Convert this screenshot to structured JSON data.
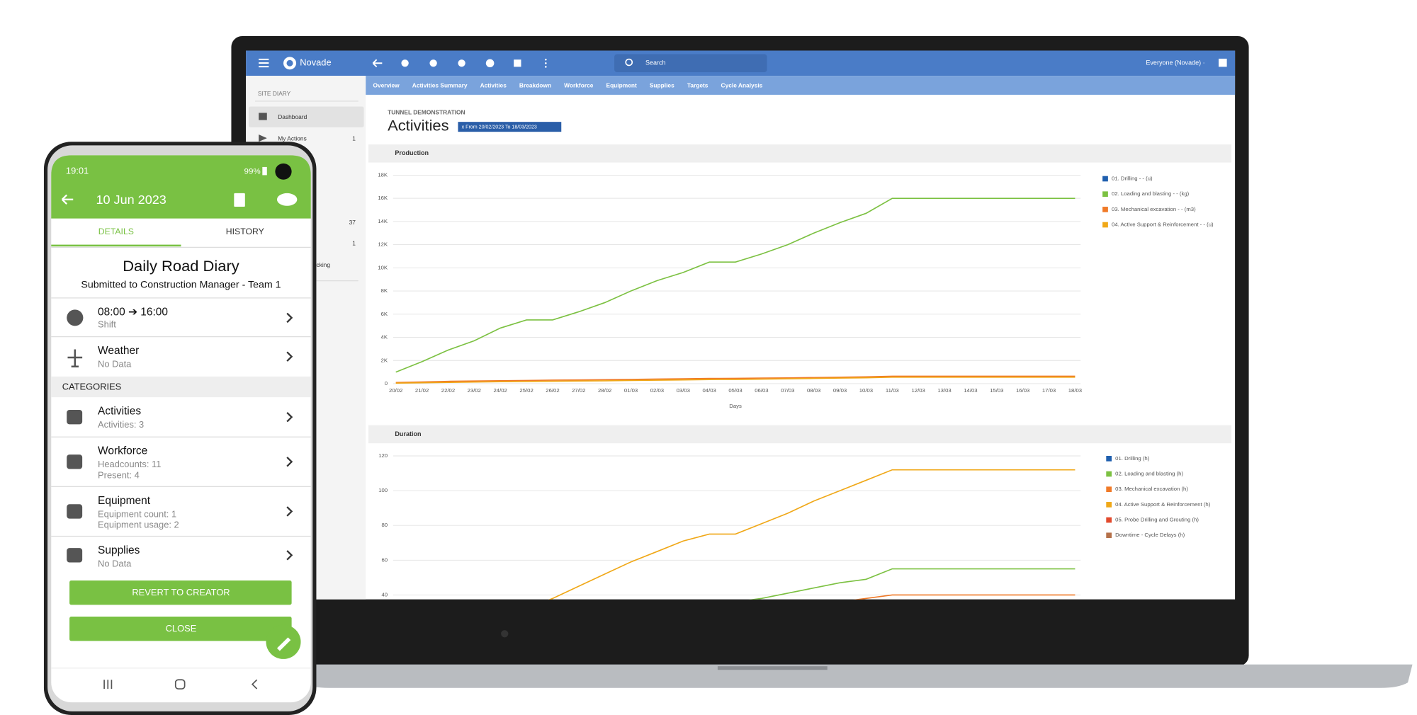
{
  "laptop": {
    "brand": "Novade",
    "search": "Search",
    "user": "Everyone (Novade) ·",
    "tabs": [
      "Overview",
      "Activities Summary",
      "Activities",
      "Breakdown",
      "Workforce",
      "Equipment",
      "Supplies",
      "Targets",
      "Cycle Analysis"
    ],
    "sidebar": {
      "section": "SITE DIARY",
      "items": [
        {
          "label": "Dashboard"
        },
        {
          "label": "My Actions",
          "count": "1"
        }
      ],
      "partial": [
        "37",
        "1",
        "cking"
      ]
    },
    "breadcrumb": "TUNNEL DEMONSTRATION",
    "title": "Activities",
    "filter": "x  From 20/02/2023 To 18/03/2023"
  },
  "chart_data": [
    {
      "type": "line",
      "title": "Production",
      "xlabel": "Days",
      "categories": [
        "20/02",
        "21/02",
        "22/02",
        "23/02",
        "24/02",
        "25/02",
        "26/02",
        "27/02",
        "28/02",
        "01/03",
        "02/03",
        "03/03",
        "04/03",
        "05/03",
        "06/03",
        "07/03",
        "08/03",
        "09/03",
        "10/03",
        "11/03",
        "12/03",
        "13/03",
        "14/03",
        "15/03",
        "16/03",
        "17/03",
        "18/03"
      ],
      "ylim": [
        0,
        18000
      ],
      "yticks": [
        0,
        {
          "value": 2000,
          "label": "2K"
        },
        {
          "value": 4000,
          "label": "4K"
        },
        {
          "value": 6000,
          "label": "6K"
        },
        {
          "value": 8000,
          "label": "8K"
        },
        {
          "value": 10000,
          "label": "10K"
        },
        {
          "value": 12000,
          "label": "12K"
        },
        {
          "value": 14000,
          "label": "14K"
        },
        {
          "value": 16000,
          "label": "16K"
        },
        {
          "value": 18000,
          "label": "18K"
        }
      ],
      "grid": true,
      "series": [
        {
          "name": "01. Drilling - - (u)",
          "color": "#1f5fae"
        },
        {
          "name": "02. Loading and blasting - - (kg)",
          "color": "#7cc142",
          "values": [
            1000,
            1900,
            2900,
            3700,
            4800,
            5500,
            5500,
            6200,
            7000,
            8000,
            8900,
            9600,
            10500,
            10500,
            11200,
            12000,
            13000,
            13900,
            14700,
            16000,
            16000,
            16000,
            16000,
            16000,
            16000,
            16000,
            16000
          ]
        },
        {
          "name": "03. Mechanical excavation - - (m3)",
          "color": "#f07a28",
          "values": [
            100,
            150,
            200,
            230,
            260,
            280,
            300,
            320,
            340,
            370,
            400,
            420,
            450,
            460,
            480,
            500,
            530,
            560,
            590,
            650,
            650,
            650,
            650,
            650,
            650,
            650,
            650
          ]
        },
        {
          "name": "04. Active Support & Reinforcement - - (u)",
          "color": "#f0a818",
          "values": [
            50,
            80,
            110,
            140,
            170,
            190,
            210,
            230,
            250,
            280,
            300,
            330,
            360,
            370,
            390,
            420,
            450,
            480,
            510,
            560,
            560,
            560,
            560,
            560,
            560,
            560,
            560
          ]
        }
      ]
    },
    {
      "type": "line",
      "title": "Duration",
      "categories": [
        "20/02",
        "21/02",
        "22/02",
        "23/02",
        "24/02",
        "25/02",
        "26/02",
        "27/02",
        "28/02",
        "01/03",
        "02/03",
        "03/03",
        "04/03",
        "05/03",
        "06/03",
        "07/03",
        "08/03",
        "09/03",
        "10/03",
        "11/03",
        "12/03",
        "13/03",
        "14/03",
        "15/03",
        "16/03",
        "17/03",
        "18/03"
      ],
      "ylim": [
        0,
        120
      ],
      "yticks": [
        40,
        60,
        80,
        100,
        120
      ],
      "grid": true,
      "series": [
        {
          "name": "01. Drilling (h)",
          "color": "#1f5fae"
        },
        {
          "name": "02. Loading and blasting (h)",
          "color": "#7cc142",
          "values": [
            8,
            10,
            12,
            14,
            16,
            18,
            20,
            22,
            24,
            26,
            28,
            30,
            33,
            36,
            38,
            41,
            44,
            47,
            49,
            55,
            55,
            55,
            55,
            55,
            55,
            55,
            55
          ]
        },
        {
          "name": "03. Mechanical excavation (h)",
          "color": "#f07a28",
          "values": [
            5,
            7,
            9,
            11,
            13,
            15,
            17,
            19,
            21,
            23,
            25,
            27,
            29,
            31,
            33,
            34,
            35,
            36,
            38,
            40,
            40,
            40,
            40,
            40,
            40,
            40,
            40
          ]
        },
        {
          "name": "04. Active Support & Reinforcement (h)",
          "color": "#f0a818",
          "values": [
            2,
            8,
            14,
            20,
            26,
            32,
            38,
            45,
            52,
            59,
            65,
            71,
            75,
            75,
            81,
            87,
            94,
            100,
            106,
            112,
            112,
            112,
            112,
            112,
            112,
            112,
            112
          ]
        },
        {
          "name": "05. Probe Drilling and Grouting (h)",
          "color": "#e2492c"
        },
        {
          "name": "Downtime - Cycle Delays (h)",
          "color": "#b5714a"
        }
      ]
    }
  ],
  "phone": {
    "time": "19:01",
    "battery": "99%",
    "date": "10 Jun 2023",
    "tabs": [
      "DETAILS",
      "HISTORY"
    ],
    "title": "Daily Road Diary",
    "subtitle": "Submitted to Construction Manager - Team 1",
    "shift": {
      "label": "08:00 ➔ 16:00",
      "sub": "Shift"
    },
    "weather": {
      "label": "Weather",
      "sub": "No Data"
    },
    "section": "CATEGORIES",
    "categories": [
      {
        "label": "Activities",
        "sub": [
          "Activities: 3"
        ]
      },
      {
        "label": "Workforce",
        "sub": [
          "Headcounts: 11",
          "Present: 4"
        ]
      },
      {
        "label": "Equipment",
        "sub": [
          "Equipment count: 1",
          "Equipment usage: 2"
        ]
      },
      {
        "label": "Supplies",
        "sub": [
          "No Data"
        ]
      }
    ],
    "buttons": [
      "REVERT TO CREATOR",
      "CLOSE"
    ]
  }
}
